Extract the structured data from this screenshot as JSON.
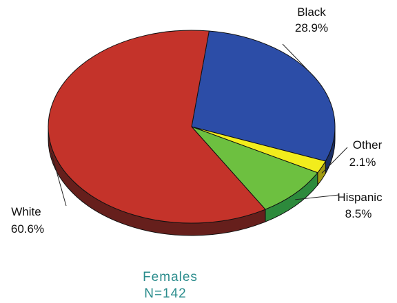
{
  "chart_data": {
    "type": "pie",
    "style": "3d",
    "slices": [
      {
        "label": "Black",
        "percent_text": "28.9%",
        "value": 28.9,
        "color": "#2c4da7",
        "side_color": "#1b2f66"
      },
      {
        "label": "Other",
        "percent_text": "2.1%",
        "value": 2.1,
        "color": "#f2ec1c",
        "side_color": "#a39c10"
      },
      {
        "label": "Hispanic",
        "percent_text": "8.5%",
        "value": 8.5,
        "color": "#6dc040",
        "side_color": "#2d8a3c"
      },
      {
        "label": "White",
        "percent_text": "60.6%",
        "value": 60.6,
        "color": "#c4332a",
        "side_color": "#661f1c"
      }
    ],
    "caption_line1": "Females",
    "caption_line2": "N=142",
    "caption_color": "#2a8c8c"
  }
}
